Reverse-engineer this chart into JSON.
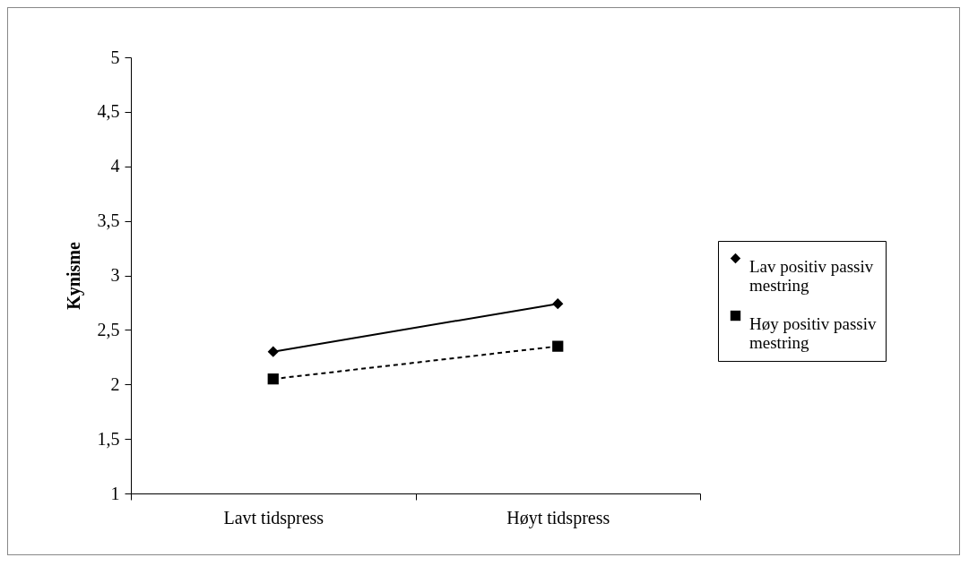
{
  "chart_data": {
    "type": "line",
    "ylabel": "Kynisme",
    "categories": [
      "Lavt tidspress",
      "Høyt tidspress"
    ],
    "ylim": [
      1,
      5
    ],
    "yticks": [
      1,
      {
        "value": 1.5,
        "label": "1,5"
      },
      2,
      {
        "value": 2.5,
        "label": "2,5"
      },
      3,
      {
        "value": 3.5,
        "label": "3,5"
      },
      4,
      {
        "value": 4.5,
        "label": "4,5"
      },
      5
    ],
    "grid": false,
    "legend": "right",
    "series": [
      {
        "name": "Lav positiv passiv mestring",
        "color": "#000000",
        "values": [
          2.3,
          2.74
        ],
        "marker": "diamond",
        "line_style": "solid"
      },
      {
        "name": "Høy positiv passiv mestring",
        "color": "#000000",
        "values": [
          2.05,
          2.35
        ],
        "marker": "square",
        "line_style": "dashed"
      }
    ]
  }
}
